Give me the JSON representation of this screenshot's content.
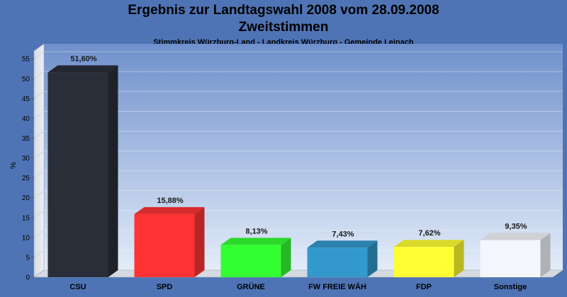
{
  "title": "Ergebnis zur Landtagswahl 2008 vom 28.09.2008",
  "subtitle": "Zweitstimmen",
  "subsubtitle": "Stimmkreis Würzburg-Land - Landkreis Würzburg - Gemeinde Leinach",
  "chart_data": {
    "type": "bar",
    "title": "Ergebnis zur Landtagswahl 2008 vom 28.09.2008",
    "subtitle": "Zweitstimmen",
    "xlabel": "",
    "ylabel": "%",
    "ylim": [
      0,
      57
    ],
    "yticks": [
      0,
      5,
      10,
      15,
      20,
      25,
      30,
      35,
      40,
      45,
      50,
      55
    ],
    "grid": true,
    "categories": [
      "CSU",
      "SPD",
      "GRÜNE",
      "FW FREIE WÄH",
      "FDP",
      "Sonstige"
    ],
    "values": [
      51.6,
      15.88,
      8.13,
      7.43,
      7.62,
      9.35
    ],
    "value_labels": [
      "51,60%",
      "15,88%",
      "8,13%",
      "7,43%",
      "7,62%",
      "9,35%"
    ],
    "colors": [
      "#2a2e38",
      "#ff3333",
      "#33ff33",
      "#3399cc",
      "#ffff33",
      "#f4f6fb"
    ]
  }
}
